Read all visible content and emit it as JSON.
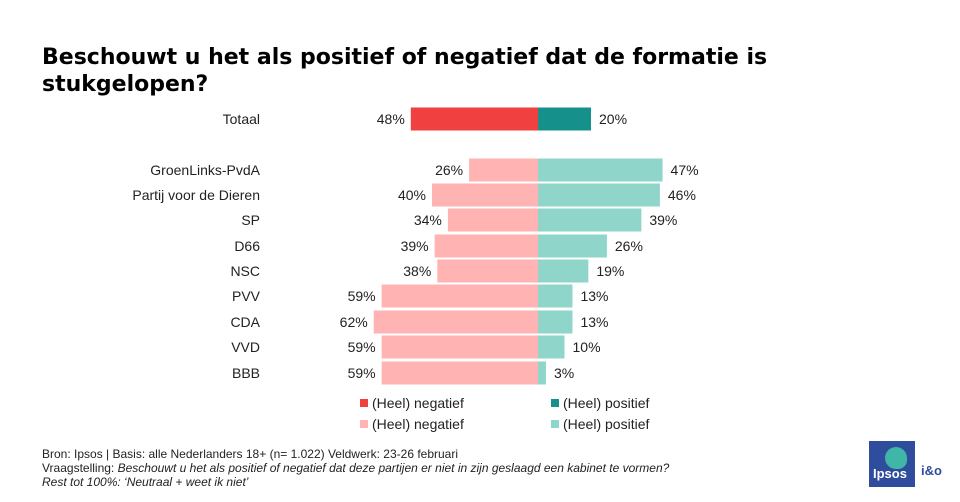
{
  "title": "Beschouwt u het als positief of negatief dat de formatie is stukgelopen?",
  "colors": {
    "total_negative": "#f04040",
    "total_positive": "#15908a",
    "party_negative": "#ffb3b3",
    "party_positive": "#8fd5c9"
  },
  "chart_data": {
    "type": "bar",
    "orientation": "horizontal-diverging",
    "title": "Beschouwt u het als positief of negatief dat de formatie is stukgelopen?",
    "categories": [
      "Totaal",
      "GroenLinks-PvdA",
      "Partij voor de Dieren",
      "SP",
      "D66",
      "NSC",
      "PVV",
      "CDA",
      "VVD",
      "BBB"
    ],
    "series": [
      {
        "name": "(Heel) negatief",
        "values": [
          48,
          26,
          40,
          34,
          39,
          38,
          59,
          62,
          59,
          59
        ]
      },
      {
        "name": "(Heel) positief",
        "values": [
          20,
          47,
          46,
          39,
          26,
          19,
          13,
          13,
          10,
          3
        ]
      }
    ],
    "unit": "%",
    "legend_position": "bottom"
  },
  "legend": [
    {
      "label": "(Heel) negatief",
      "color": "#f04040"
    },
    {
      "label": "(Heel) positief",
      "color": "#15908a"
    },
    {
      "label": "(Heel) negatief",
      "color": "#ffb3b3"
    },
    {
      "label": "(Heel) positief",
      "color": "#8fd5c9"
    }
  ],
  "footer": {
    "source": "Bron: Ipsos | Basis: alle Nederlanders  18+ (n= 1.022) Veldwerk: 23-26 februari",
    "question_label": "Vraagstelling: ",
    "question_text": "Beschouwt u het als positief of negatief dat deze partijen  er niet in zijn geslaagd een  kabinet te vormen?",
    "rest": "Rest tot 100%: ‘Neutraal  + weet ik niet’"
  },
  "logo": {
    "brand": "Ipsos",
    "suffix": "i&o"
  }
}
